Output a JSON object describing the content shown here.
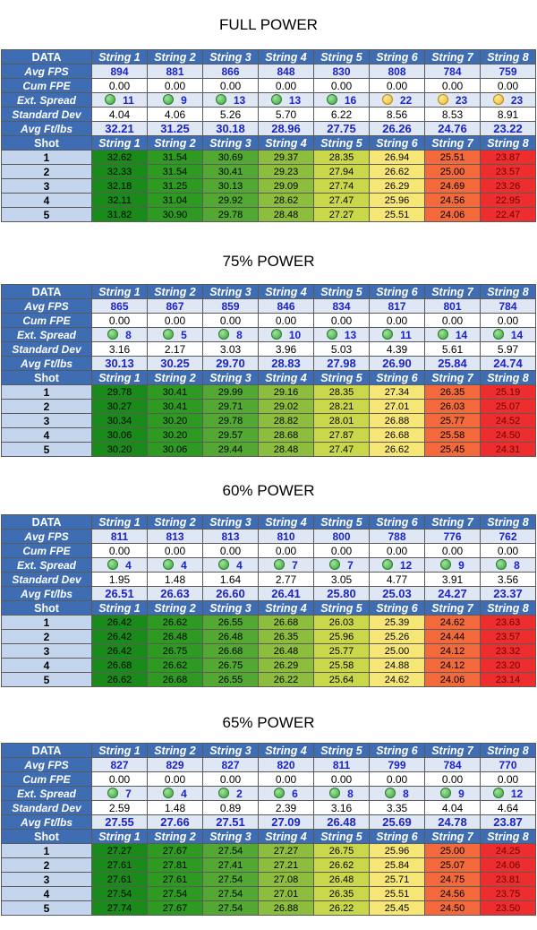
{
  "strings": [
    "String 1",
    "String 2",
    "String 3",
    "String 4",
    "String 5",
    "String 6",
    "String 7",
    "String 8"
  ],
  "labels": {
    "data": "DATA",
    "avg_fps": "Avg FPS",
    "cum_fpe": "Cum FPE",
    "ext_spread": "Ext. Spread",
    "std_dev": "Standard Dev",
    "avg_ftlbs": "Avg Ft/lbs",
    "shot": "Shot"
  },
  "colors": {
    "header_blue": "#3f6db3",
    "value_blue": "#1b24c8",
    "dot_green": "#37a637",
    "dot_yellow": "#f0b823"
  },
  "sections": [
    {
      "title": "FULL POWER",
      "avg_fps": [
        "894",
        "881",
        "866",
        "848",
        "830",
        "808",
        "784",
        "759"
      ],
      "cum_fpe": [
        "0.00",
        "0.00",
        "0.00",
        "0.00",
        "0.00",
        "0.00",
        "0.00",
        "0.00"
      ],
      "ext_spread": [
        "11",
        "9",
        "13",
        "13",
        "16",
        "22",
        "23",
        "23"
      ],
      "spread_dot": [
        "green-dot-icon",
        "green-dot-icon",
        "green-dot-icon",
        "green-dot-icon",
        "green-dot-icon",
        "yellow-dot-icon",
        "yellow-dot-icon",
        "yellow-dot-icon"
      ],
      "std_dev": [
        "4.04",
        "4.06",
        "5.26",
        "5.70",
        "6.22",
        "8.56",
        "8.53",
        "8.91"
      ],
      "avg_ftlbs": [
        "32.21",
        "31.25",
        "30.18",
        "28.96",
        "27.75",
        "26.26",
        "24.76",
        "23.22"
      ],
      "shots": [
        {
          "n": "1",
          "v": [
            "32.62",
            "31.54",
            "30.69",
            "29.37",
            "28.35",
            "26.94",
            "25.51",
            "23.87"
          ]
        },
        {
          "n": "2",
          "v": [
            "32.33",
            "31.54",
            "30.41",
            "29.23",
            "27.94",
            "26.62",
            "25.00",
            "23.57"
          ]
        },
        {
          "n": "3",
          "v": [
            "32.18",
            "31.25",
            "30.13",
            "29.09",
            "27.74",
            "26.29",
            "24.69",
            "23.26"
          ]
        },
        {
          "n": "4",
          "v": [
            "32.11",
            "31.04",
            "29.92",
            "28.62",
            "27.47",
            "25.96",
            "24.56",
            "22.95"
          ]
        },
        {
          "n": "5",
          "v": [
            "31.82",
            "30.90",
            "29.78",
            "28.48",
            "27.27",
            "25.51",
            "24.06",
            "22.47"
          ]
        }
      ]
    },
    {
      "title": "75% POWER",
      "avg_fps": [
        "865",
        "867",
        "859",
        "846",
        "834",
        "817",
        "801",
        "784"
      ],
      "cum_fpe": [
        "0.00",
        "0.00",
        "0.00",
        "0.00",
        "0.00",
        "0.00",
        "0.00",
        "0.00"
      ],
      "ext_spread": [
        "8",
        "5",
        "8",
        "10",
        "13",
        "11",
        "14",
        "14"
      ],
      "spread_dot": [
        "green-dot-icon",
        "green-dot-icon",
        "green-dot-icon",
        "green-dot-icon",
        "green-dot-icon",
        "green-dot-icon",
        "green-dot-icon",
        "green-dot-icon"
      ],
      "std_dev": [
        "3.16",
        "2.17",
        "3.03",
        "3.96",
        "5.03",
        "4.39",
        "5.61",
        "5.97"
      ],
      "avg_ftlbs": [
        "30.13",
        "30.25",
        "29.70",
        "28.83",
        "27.98",
        "26.90",
        "25.84",
        "24.74"
      ],
      "shots": [
        {
          "n": "1",
          "v": [
            "29.78",
            "30.41",
            "29.99",
            "29.16",
            "28.35",
            "27.34",
            "26.35",
            "25.19"
          ]
        },
        {
          "n": "2",
          "v": [
            "30.27",
            "30.41",
            "29.71",
            "29.02",
            "28.21",
            "27.01",
            "26.03",
            "25.07"
          ]
        },
        {
          "n": "3",
          "v": [
            "30.34",
            "30.20",
            "29.78",
            "28.82",
            "28.01",
            "26.88",
            "25.77",
            "24.52"
          ]
        },
        {
          "n": "4",
          "v": [
            "30.06",
            "30.20",
            "29.57",
            "28.68",
            "27.87",
            "26.68",
            "25.58",
            "24.50"
          ]
        },
        {
          "n": "5",
          "v": [
            "30.20",
            "30.06",
            "29.44",
            "28.48",
            "27.47",
            "26.62",
            "25.45",
            "24.31"
          ]
        }
      ]
    },
    {
      "title": "60% POWER",
      "avg_fps": [
        "811",
        "813",
        "813",
        "810",
        "800",
        "788",
        "776",
        "762"
      ],
      "cum_fpe": [
        "0.00",
        "0.00",
        "0.00",
        "0.00",
        "0.00",
        "0.00",
        "0.00",
        "0.00"
      ],
      "ext_spread": [
        "4",
        "4",
        "4",
        "7",
        "7",
        "12",
        "9",
        "8"
      ],
      "spread_dot": [
        "green-dot-icon",
        "green-dot-icon",
        "green-dot-icon",
        "green-dot-icon",
        "green-dot-icon",
        "green-dot-icon",
        "green-dot-icon",
        "green-dot-icon"
      ],
      "std_dev": [
        "1.95",
        "1.48",
        "1.64",
        "2.77",
        "3.05",
        "4.77",
        "3.91",
        "3.56"
      ],
      "avg_ftlbs": [
        "26.51",
        "26.63",
        "26.60",
        "26.41",
        "25.80",
        "25.03",
        "24.27",
        "23.37"
      ],
      "shots": [
        {
          "n": "1",
          "v": [
            "26.42",
            "26.62",
            "26.55",
            "26.68",
            "26.03",
            "25.39",
            "24.62",
            "23.63"
          ]
        },
        {
          "n": "2",
          "v": [
            "26.42",
            "26.48",
            "26.48",
            "26.35",
            "25.96",
            "25.26",
            "24.44",
            "23.57"
          ]
        },
        {
          "n": "3",
          "v": [
            "26.42",
            "26.75",
            "26.68",
            "26.48",
            "25.77",
            "25.00",
            "24.12",
            "23.32"
          ]
        },
        {
          "n": "4",
          "v": [
            "26.68",
            "26.62",
            "26.75",
            "26.29",
            "25.58",
            "24.88",
            "24.12",
            "23.20"
          ]
        },
        {
          "n": "5",
          "v": [
            "26.62",
            "26.68",
            "26.55",
            "26.22",
            "25.64",
            "24.62",
            "24.06",
            "23.14"
          ]
        }
      ]
    },
    {
      "title": "65% POWER",
      "avg_fps": [
        "827",
        "829",
        "827",
        "820",
        "811",
        "799",
        "784",
        "770"
      ],
      "cum_fpe": [
        "0.00",
        "0.00",
        "0.00",
        "0.00",
        "0.00",
        "0.00",
        "0.00",
        "0.00"
      ],
      "ext_spread": [
        "7",
        "4",
        "2",
        "6",
        "8",
        "8",
        "9",
        "12"
      ],
      "spread_dot": [
        "green-dot-icon",
        "green-dot-icon",
        "green-dot-icon",
        "green-dot-icon",
        "green-dot-icon",
        "green-dot-icon",
        "green-dot-icon",
        "green-dot-icon"
      ],
      "std_dev": [
        "2.59",
        "1.48",
        "0.89",
        "2.39",
        "3.16",
        "3.35",
        "4.04",
        "4.64"
      ],
      "avg_ftlbs": [
        "27.55",
        "27.66",
        "27.51",
        "27.09",
        "26.48",
        "25.69",
        "24.78",
        "23.87"
      ],
      "shots": [
        {
          "n": "1",
          "v": [
            "27.27",
            "27.67",
            "27.54",
            "27.27",
            "26.75",
            "25.96",
            "25.00",
            "24.25"
          ]
        },
        {
          "n": "2",
          "v": [
            "27.61",
            "27.81",
            "27.41",
            "27.21",
            "26.62",
            "25.84",
            "25.07",
            "24.06"
          ]
        },
        {
          "n": "3",
          "v": [
            "27.61",
            "27.61",
            "27.54",
            "27.08",
            "26.48",
            "25.71",
            "24.75",
            "23.81"
          ]
        },
        {
          "n": "4",
          "v": [
            "27.54",
            "27.54",
            "27.54",
            "27.01",
            "26.35",
            "25.51",
            "24.56",
            "23.75"
          ]
        },
        {
          "n": "5",
          "v": [
            "27.74",
            "27.67",
            "27.54",
            "26.88",
            "26.22",
            "25.45",
            "24.50",
            "23.50"
          ]
        }
      ]
    }
  ]
}
